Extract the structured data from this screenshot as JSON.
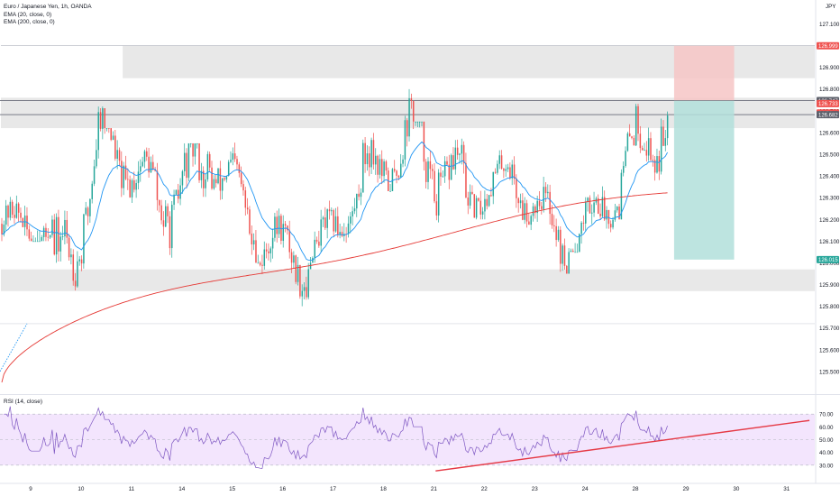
{
  "header": {
    "symbol_line": "Euro / Japanese Yen, 1h, OANDA",
    "ema_fast_label": "EMA (20, close, 0)",
    "ema_slow_label": "EMA (200, close, 0)",
    "currency": "JPY"
  },
  "colors": {
    "up": "#26a69a",
    "down": "#ef5350",
    "ema_fast": "#2196f3",
    "ema_slow": "#e53935",
    "rsi_line": "#7e57c2",
    "rsi_band": "#f3e5fd",
    "trendline": "#e53945",
    "zone": "#e0e0e0",
    "stop_zone": "#f6c6c6",
    "target_zone": "#b2dfdb"
  },
  "chart_data": [
    {
      "type": "candlestick",
      "title": "Euro / Japanese Yen, 1h, OANDA",
      "ylim": [
        125.4,
        127.05
      ],
      "y_ticks": [
        "127.100",
        "127.000",
        "126.900",
        "126.800",
        "126.700",
        "126.600",
        "126.500",
        "126.400",
        "126.300",
        "126.200",
        "126.100",
        "126.000",
        "125.900",
        "125.800",
        "125.700",
        "125.600",
        "125.500"
      ],
      "y_tick_values": [
        127.1,
        127.0,
        126.9,
        126.8,
        126.7,
        126.6,
        126.5,
        126.4,
        126.3,
        126.2,
        126.1,
        126.0,
        125.9,
        125.8,
        125.7,
        125.6,
        125.5
      ],
      "x_ticks": [
        "9",
        "10",
        "11",
        "14",
        "15",
        "16",
        "17",
        "18",
        "21",
        "22",
        "23",
        "24",
        "28",
        "29",
        "30",
        "31"
      ],
      "x_tick_bars": [
        0,
        24,
        48,
        72,
        96,
        120,
        144,
        168,
        192,
        216,
        240,
        264,
        288,
        312,
        336,
        360
      ],
      "bars_shown": 318,
      "series": [
        {
          "name": "EMA (20, close, 0)",
          "role": "ema_fast"
        },
        {
          "name": "EMA (200, close, 0)",
          "role": "ema_slow"
        }
      ],
      "ohlc": [
        {
          "session": "9",
          "open": 126.18,
          "high": 126.45,
          "low": 126.1,
          "close": 126.15
        },
        {
          "session": "10",
          "open": 125.84,
          "high": 126.72,
          "low": 125.78,
          "close": 126.6
        },
        {
          "session": "11",
          "open": 126.6,
          "high": 126.62,
          "low": 126.05,
          "close": 126.3
        },
        {
          "session": "14",
          "open": 126.3,
          "high": 126.55,
          "low": 125.79,
          "close": 126.4
        },
        {
          "session": "15",
          "open": 126.55,
          "high": 126.6,
          "low": 126.0,
          "close": 126.1
        },
        {
          "session": "16",
          "open": 126.1,
          "high": 126.25,
          "low": 125.72,
          "close": 126.0
        },
        {
          "session": "17",
          "open": 126.0,
          "high": 126.4,
          "low": 126.0,
          "close": 126.35
        },
        {
          "session": "18",
          "open": 126.35,
          "high": 127.0,
          "low": 126.33,
          "close": 126.6
        },
        {
          "session": "21",
          "open": 126.6,
          "high": 126.65,
          "low": 125.92,
          "close": 126.3
        },
        {
          "session": "22",
          "open": 126.3,
          "high": 126.6,
          "low": 126.2,
          "close": 126.4
        },
        {
          "session": "23",
          "open": 126.4,
          "high": 126.45,
          "low": 125.95,
          "close": 126.05
        },
        {
          "session": "24",
          "open": 126.05,
          "high": 126.48,
          "low": 126.05,
          "close": 126.35
        },
        {
          "session": "28",
          "open": 126.35,
          "high": 126.96,
          "low": 126.2,
          "close": 126.74
        }
      ],
      "ema20_last": 126.58,
      "ema200_last": 126.31,
      "price_labels": [
        {
          "text": "126.999",
          "value": 126.999,
          "kind": "stop"
        },
        {
          "text": "126.747",
          "value": 126.747,
          "kind": "entry"
        },
        {
          "text": "126.733",
          "value": 126.733,
          "kind": "last"
        },
        {
          "text": "24:54",
          "value": 126.69,
          "kind": "countdown"
        },
        {
          "text": "126.682",
          "value": 126.682,
          "kind": "level"
        },
        {
          "text": "126.015",
          "value": 126.015,
          "kind": "target"
        }
      ],
      "zones": [
        {
          "name": "resistance-zone",
          "from": 126.85,
          "to": 127.0,
          "start_bar": 58
        },
        {
          "name": "mid-zone",
          "from": 126.62,
          "to": 126.76,
          "start_bar": 0
        },
        {
          "name": "support-zone",
          "from": 125.87,
          "to": 125.97,
          "start_bar": 0
        }
      ],
      "horizontal_lines": [
        126.747,
        126.682
      ],
      "position": {
        "entry": 126.747,
        "stop": 126.999,
        "target": 126.015,
        "start_bar": 318,
        "end_bar": 338
      }
    },
    {
      "type": "line",
      "title": "RSI (14, close)",
      "ylim": [
        25,
        80
      ],
      "y_ticks": [
        "70.00",
        "60.00",
        "50.00",
        "40.00",
        "30.00"
      ],
      "y_tick_values": [
        70,
        60,
        50,
        40,
        30
      ],
      "band": [
        30,
        70
      ],
      "trendline": {
        "from_bar": 207,
        "from_value": 25.5,
        "to_bar": 385,
        "to_value": 65
      }
    }
  ]
}
